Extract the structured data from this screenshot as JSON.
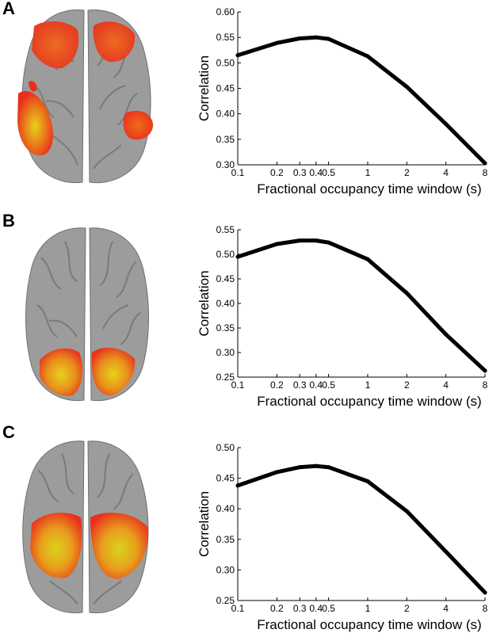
{
  "panels": [
    {
      "label": "A"
    },
    {
      "label": "B"
    },
    {
      "label": "C"
    }
  ],
  "colors": {
    "line": "#000000",
    "brain_surface": "#9c9c9c",
    "activation_red": "#e8301c",
    "activation_yellow": "#e8d21a"
  },
  "chart_data": [
    {
      "type": "line",
      "xlabel": "Fractional occupancy time window (s)",
      "ylabel": "Correlation",
      "x": [
        0.1,
        0.2,
        0.3,
        0.4,
        0.5,
        1,
        2,
        4,
        8
      ],
      "x_tick_labels": [
        "0.1",
        "0.2",
        "0.3",
        "0.4",
        "0.5",
        "1",
        "2",
        "4",
        "8"
      ],
      "values": [
        0.515,
        0.539,
        0.548,
        0.55,
        0.547,
        0.513,
        0.453,
        0.38,
        0.303
      ],
      "ylim": [
        0.3,
        0.6
      ],
      "y_ticks": [
        "0.60",
        "0.55",
        "0.50",
        "0.45",
        "0.40",
        "0.35",
        "0.30"
      ],
      "grid": false
    },
    {
      "type": "line",
      "xlabel": "Fractional occupancy time window (s)",
      "ylabel": "Correlation",
      "x": [
        0.1,
        0.2,
        0.3,
        0.4,
        0.5,
        1,
        2,
        4,
        8
      ],
      "x_tick_labels": [
        "0.1",
        "0.2",
        "0.3",
        "0.4",
        "0.5",
        "1",
        "2",
        "4",
        "8"
      ],
      "values": [
        0.495,
        0.521,
        0.528,
        0.528,
        0.524,
        0.49,
        0.421,
        0.337,
        0.263
      ],
      "ylim": [
        0.25,
        0.55
      ],
      "y_ticks": [
        "0.55",
        "0.50",
        "0.45",
        "0.40",
        "0.35",
        "0.30",
        "0.25"
      ],
      "grid": false
    },
    {
      "type": "line",
      "xlabel": "Fractional occupancy time window (s)",
      "ylabel": "Correlation",
      "x": [
        0.1,
        0.2,
        0.3,
        0.4,
        0.5,
        1,
        2,
        4,
        8
      ],
      "x_tick_labels": [
        "0.1",
        "0.2",
        "0.3",
        "0.4",
        "0.5",
        "1",
        "2",
        "4",
        "8"
      ],
      "values": [
        0.438,
        0.46,
        0.468,
        0.47,
        0.468,
        0.445,
        0.396,
        0.33,
        0.263
      ],
      "ylim": [
        0.25,
        0.5
      ],
      "y_ticks": [
        "0.50",
        "0.45",
        "0.40",
        "0.35",
        "0.30",
        "0.25"
      ],
      "grid": false
    }
  ]
}
